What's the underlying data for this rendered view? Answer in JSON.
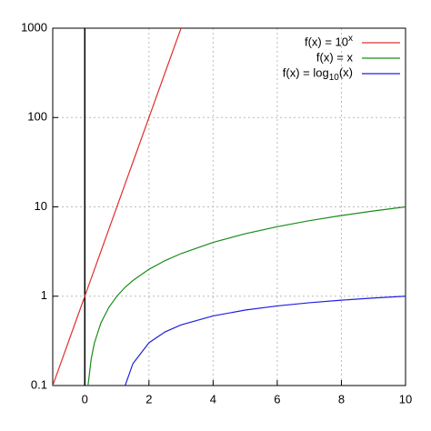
{
  "chart_data": {
    "type": "line",
    "log_y": true,
    "grid": true,
    "legend": "top-right",
    "x": [
      -1,
      -0.5,
      0,
      0.1,
      0.2,
      0.3,
      0.5,
      0.75,
      1,
      1.26,
      1.5,
      2,
      2.5,
      3,
      4,
      5,
      6,
      7,
      8,
      9,
      10
    ],
    "series": [
      {
        "name": "f(x) = 10^x",
        "color": "#e03030",
        "values": [
          0.1,
          0.3162,
          1,
          1.259,
          1.585,
          1.995,
          3.162,
          5.623,
          10,
          18.2,
          31.62,
          100,
          316.2,
          1000,
          null,
          null,
          null,
          null,
          null,
          null,
          null
        ]
      },
      {
        "name": "f(x) = x",
        "color": "#1a8c1a",
        "values": [
          null,
          null,
          null,
          0.1,
          0.2,
          0.3,
          0.5,
          0.75,
          1,
          1.26,
          1.5,
          2,
          2.5,
          3,
          4,
          5,
          6,
          7,
          8,
          9,
          10
        ]
      },
      {
        "name": "f(x) = log_10(x)",
        "color": "#2020e0",
        "values": [
          null,
          null,
          null,
          null,
          null,
          null,
          null,
          null,
          null,
          0.1004,
          0.1761,
          0.301,
          0.398,
          0.477,
          0.602,
          0.699,
          0.778,
          0.845,
          0.903,
          0.954,
          1
        ]
      }
    ],
    "xlim": [
      -1,
      10
    ],
    "xticks": [
      0,
      2,
      4,
      6,
      8,
      10
    ],
    "ylim": [
      0.1,
      1000
    ],
    "yticks": [
      0.1,
      1,
      10,
      100,
      1000
    ]
  }
}
